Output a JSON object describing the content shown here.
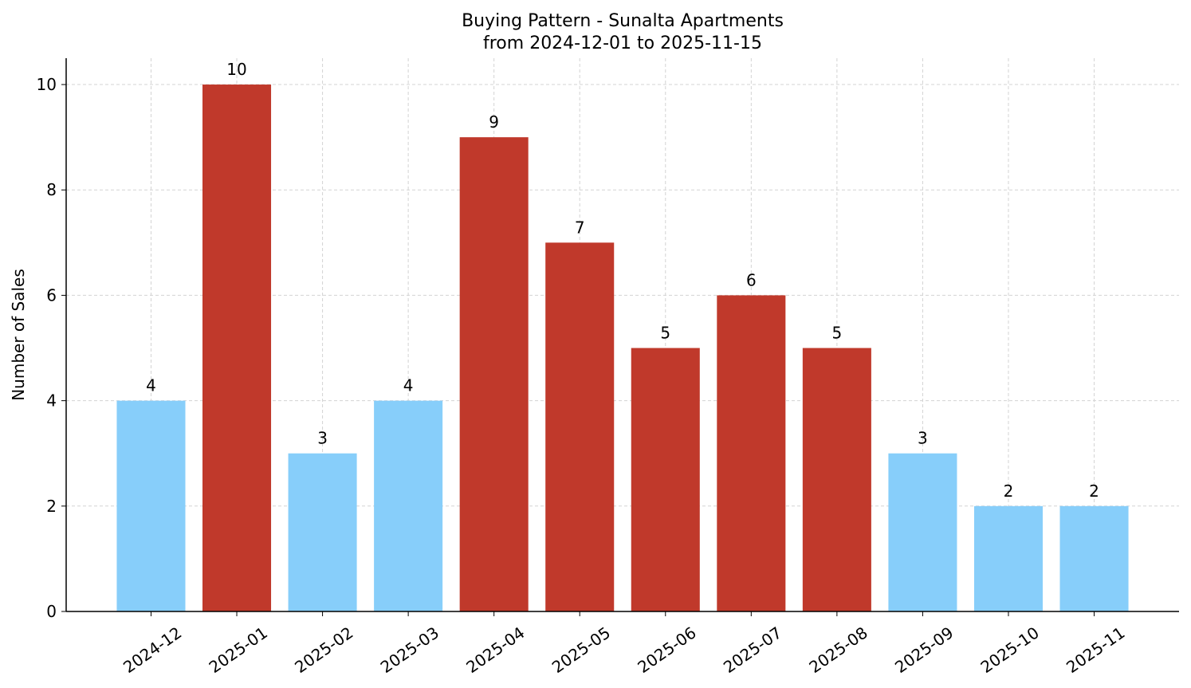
{
  "chart_data": {
    "type": "bar",
    "title": "Buying Pattern - Sunalta Apartments",
    "subtitle": "from 2024-12-01 to 2025-11-15",
    "y_label": "Number of Sales",
    "categories": [
      "2024-12",
      "2025-01",
      "2025-02",
      "2025-03",
      "2025-04",
      "2025-05",
      "2025-06",
      "2025-07",
      "2025-08",
      "2025-09",
      "2025-10",
      "2025-11"
    ],
    "values": [
      4,
      10,
      3,
      4,
      9,
      7,
      5,
      6,
      5,
      3,
      2,
      2
    ],
    "colors": [
      "#87cefa",
      "#c0392b",
      "#87cefa",
      "#87cefa",
      "#c0392b",
      "#c0392b",
      "#c0392b",
      "#c0392b",
      "#c0392b",
      "#87cefa",
      "#87cefa",
      "#87cefa"
    ],
    "ylim": [
      0,
      10.5
    ],
    "yticks": [
      0,
      2,
      4,
      6,
      8,
      10
    ],
    "grid": true
  }
}
